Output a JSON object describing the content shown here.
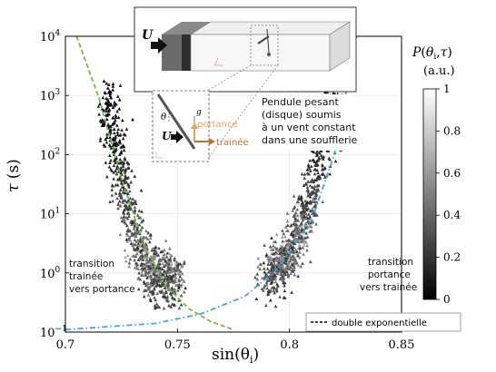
{
  "chart_data": {
    "type": "scatter",
    "xlabel": "sin(θ_i)",
    "ylabel": "τ (s)",
    "xlim": [
      0.7,
      0.85
    ],
    "ylim": [
      0.1,
      10000
    ],
    "y_scale": "log",
    "x_ticks": [
      "0.7",
      "0.75",
      "0.8",
      "0.85"
    ],
    "y_ticks": [
      {
        "base": "10",
        "exp": "−1",
        "value": 0.1
      },
      {
        "base": "10",
        "exp": "0",
        "value": 1
      },
      {
        "base": "10",
        "exp": "1",
        "value": 10
      },
      {
        "base": "10",
        "exp": "2",
        "value": 100
      },
      {
        "base": "10",
        "exp": "3",
        "value": 1000
      },
      {
        "base": "10",
        "exp": "4",
        "value": 10000
      }
    ],
    "grid": true,
    "colorbar": {
      "label_line1": "P(θ_i,τ)",
      "label_line2": "(a.u.)",
      "range": [
        0,
        1
      ],
      "ticks": [
        "0",
        "0.2",
        "0.4",
        "0.6",
        "0.8",
        "1"
      ],
      "colormap": "gray"
    },
    "legend": {
      "label": "double exponentielle",
      "placement": "bottom-right"
    },
    "series": [
      {
        "kind": "scatter",
        "marker": "triangle",
        "cluster": "left",
        "x_center": 0.733,
        "x_spread": 0.012,
        "trend_x": [
          0.718,
          0.725,
          0.732,
          0.74,
          0.75
        ],
        "trend_y": [
          1000,
          40,
          3,
          0.9,
          0.8
        ]
      },
      {
        "kind": "scatter",
        "marker": "triangle",
        "cluster": "right",
        "x_center": 0.808,
        "x_spread": 0.012,
        "trend_x": [
          0.79,
          0.8,
          0.81,
          0.815,
          0.822
        ],
        "trend_y": [
          0.8,
          2,
          20,
          150,
          1500
        ]
      },
      {
        "kind": "fit",
        "color": "#7cb342",
        "style": "dashed",
        "x": [
          0.705,
          0.715,
          0.725,
          0.735,
          0.745,
          0.755,
          0.765,
          0.775
        ],
        "y": [
          10000,
          900,
          40,
          3,
          0.6,
          0.25,
          0.15,
          0.11
        ]
      },
      {
        "kind": "fit",
        "color": "#42a5d9",
        "style": "dashdot",
        "x": [
          0.7,
          0.74,
          0.76,
          0.78,
          0.795,
          0.81,
          0.82,
          0.83
        ],
        "y": [
          0.11,
          0.14,
          0.2,
          0.4,
          1.2,
          8,
          100,
          10000
        ]
      }
    ],
    "annotations": {
      "left_lines": [
        "transition",
        "trainée",
        "vers portance"
      ],
      "right_lines": [
        "transition",
        "portance",
        "vers trainée"
      ],
      "inset_caption_lines": [
        "Pendule pesant",
        "(disque) soumis",
        "à un vent constant",
        "dans une soufflerie"
      ],
      "inset_U": "U",
      "inset_U_small": "U",
      "inset_theta": "θ",
      "inset_g": "g",
      "inset_portance": "portance",
      "inset_trainee": "trainée"
    },
    "colors": {
      "fit_green": "#7cb342",
      "fit_blue": "#42a5d9",
      "portance_orange": "#f0a060",
      "trainee_brown": "#c07030"
    }
  }
}
